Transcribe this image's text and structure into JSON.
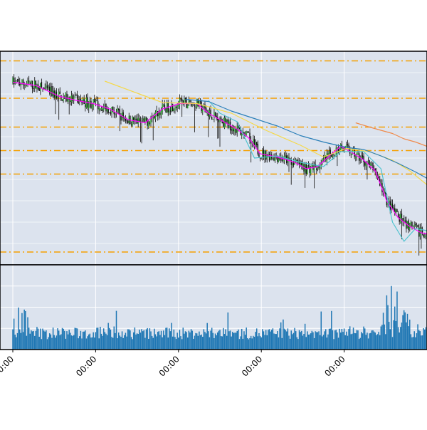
{
  "chart_data": [
    {
      "type": "candlestick",
      "panel": "price",
      "title": "",
      "xlabel": "",
      "ylabel": "",
      "grid": true,
      "background": "#dce3ee",
      "xlim": [
        0,
        360
      ],
      "ylim": [
        0,
        100
      ],
      "x_tick_positions": [
        0,
        72,
        144,
        216,
        288
      ],
      "x_tick_labels": [
        "00:00",
        "00:00",
        "00:00",
        "00:00",
        "00:00"
      ],
      "horizontal_levels": [
        95.5,
        78.0,
        64.5,
        53.5,
        42.5,
        6.0
      ],
      "series": [
        {
          "color": "#ff00ff",
          "x": [
            0,
            20,
            40,
            55,
            70,
            85,
            100,
            115,
            130,
            145,
            160,
            170,
            180,
            195,
            205,
            215,
            230,
            245,
            255,
            265,
            275,
            285,
            295,
            305,
            315,
            325,
            335,
            345,
            355,
            360
          ],
          "values": [
            85.5,
            84.0,
            79.0,
            77.0,
            75.5,
            72.8,
            68.0,
            66.5,
            73.0,
            75.5,
            75.5,
            71.0,
            68.0,
            63.5,
            59.5,
            52.0,
            50.5,
            48.0,
            45.0,
            46.0,
            51.0,
            55.5,
            52.5,
            49.0,
            44.0,
            30.0,
            22.0,
            18.0,
            15.0,
            14.5
          ]
        },
        {
          "color": "#4fc3cf",
          "x": [
            170,
            180,
            195,
            210,
            230,
            250,
            270,
            285,
            305,
            320,
            330,
            340,
            350,
            360
          ],
          "values": [
            77.0,
            71.0,
            67.0,
            50.0,
            51.0,
            48.0,
            46.0,
            53.0,
            53.0,
            45.0,
            20.0,
            11.0,
            17.0,
            16.0
          ]
        },
        {
          "color": "#f5d94a",
          "x": [
            80,
            110,
            130,
            160,
            190,
            220,
            250,
            270,
            290,
            310,
            330,
            345,
            360
          ],
          "values": [
            86.0,
            80.0,
            76.0,
            75.5,
            71.0,
            63.0,
            56.0,
            50.5,
            54.5,
            53.0,
            49.0,
            44.0,
            37.5
          ]
        },
        {
          "color": "#2a7fb8",
          "x": [
            150,
            170,
            190,
            210,
            230,
            250,
            270,
            290,
            305,
            320,
            335,
            350,
            360
          ],
          "values": [
            77.5,
            76.5,
            72.0,
            68.5,
            65.0,
            60.5,
            57.5,
            55.0,
            54.0,
            51.0,
            47.5,
            43.5,
            40.5
          ]
        },
        {
          "color": "#f08a4b",
          "x": [
            298,
            310,
            320,
            330,
            340,
            350,
            360
          ],
          "values": [
            66.5,
            64.5,
            63.0,
            61.5,
            59.0,
            57.5,
            55.5
          ]
        }
      ]
    },
    {
      "type": "bar",
      "panel": "volume",
      "title": "",
      "xlabel": "",
      "ylabel": "",
      "grid": true,
      "background": "#dce3ee",
      "ylim": [
        0,
        100
      ],
      "bar_color": "#1f77b4"
    }
  ]
}
